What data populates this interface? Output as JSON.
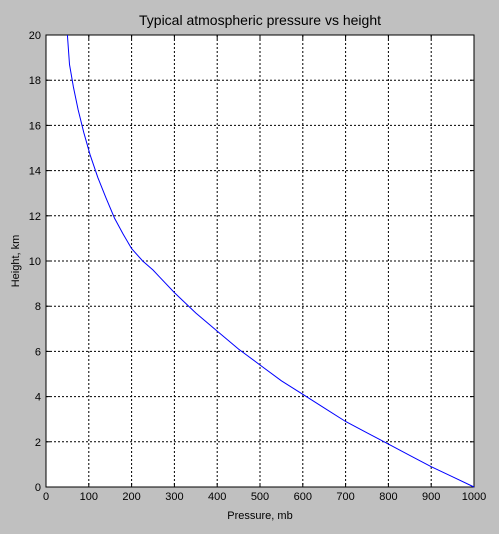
{
  "chart_data": {
    "type": "line",
    "title": "Typical atmospheric pressure vs height",
    "xlabel": "Pressure, mb",
    "ylabel": "Height, km",
    "xlim": [
      0,
      1000
    ],
    "ylim": [
      0,
      20
    ],
    "xticks": [
      0,
      100,
      200,
      300,
      400,
      500,
      600,
      700,
      800,
      900,
      1000
    ],
    "yticks": [
      0,
      2,
      4,
      6,
      8,
      10,
      12,
      14,
      16,
      18,
      20
    ],
    "grid": true,
    "series": [
      {
        "color": "#0000ff",
        "x": [
          1000,
          950,
          900,
          850,
          800,
          750,
          700,
          650,
          600,
          550,
          500,
          450,
          400,
          350,
          300,
          265,
          250,
          226,
          200,
          180,
          160,
          140,
          121,
          103,
          88,
          75,
          64,
          55,
          50
        ],
        "y": [
          0,
          0.45,
          0.9,
          1.4,
          1.9,
          2.4,
          2.9,
          3.5,
          4.1,
          4.7,
          5.4,
          6.1,
          6.9,
          7.7,
          8.6,
          9.3,
          9.6,
          10.0,
          10.55,
          11.2,
          11.9,
          12.8,
          13.7,
          14.7,
          15.7,
          16.7,
          17.7,
          18.7,
          20.0
        ]
      }
    ]
  }
}
